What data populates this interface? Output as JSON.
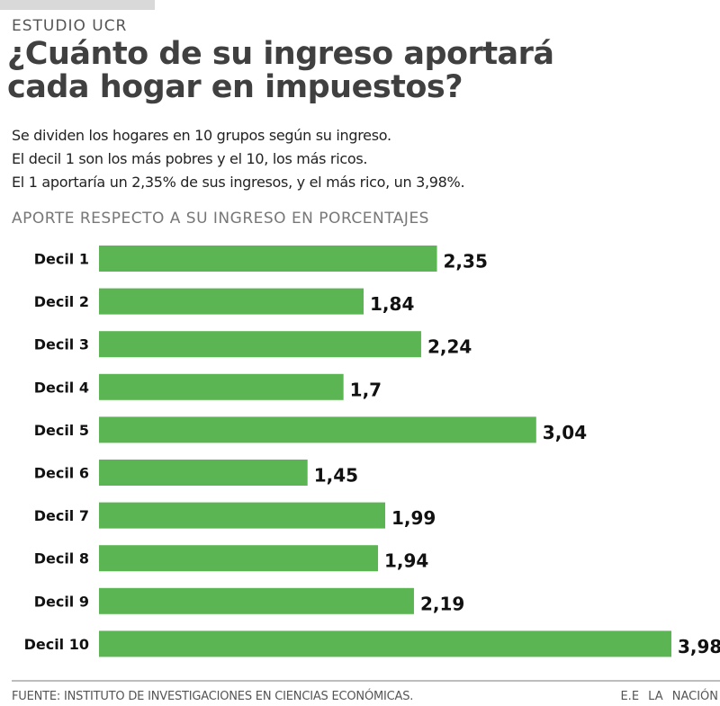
{
  "header": {
    "kicker": "ESTUDIO UCR",
    "title_line1": "¿Cuánto de su ingreso aportará",
    "title_line2": "cada hogar en impuestos?"
  },
  "description": [
    "Se dividen los hogares en 10 grupos según su ingreso.",
    "El decil 1 son los más pobres y el 10, los más ricos.",
    "El 1 aportaría un 2,35% de sus ingresos, y el más rico, un 3,98%."
  ],
  "footer": {
    "source": "FUENTE: INSTITUTO DE INVESTIGACIONES EN CIENCIAS ECONÓMICAS.",
    "credit": "E.E LA NACIÓN"
  },
  "colors": {
    "bar": "#5ab552",
    "title": "#404040"
  },
  "chart_data": {
    "type": "bar",
    "orientation": "horizontal",
    "title": "APORTE RESPECTO A SU INGRESO EN PORCENTAJES",
    "xlabel": "",
    "ylabel": "",
    "categories": [
      "Decil 1",
      "Decil 2",
      "Decil 3",
      "Decil 4",
      "Decil 5",
      "Decil 6",
      "Decil 7",
      "Decil 8",
      "Decil 9",
      "Decil 10"
    ],
    "values": [
      2.35,
      1.84,
      2.24,
      1.7,
      3.04,
      1.45,
      1.99,
      1.94,
      2.19,
      3.98
    ],
    "value_labels": [
      "2,35",
      "1,84",
      "2,24",
      "1,7",
      "3,04",
      "1,45",
      "1,99",
      "1,94",
      "2,19",
      "3,98"
    ],
    "xlim": [
      0,
      3.98
    ],
    "grid": false,
    "legend": "none"
  }
}
